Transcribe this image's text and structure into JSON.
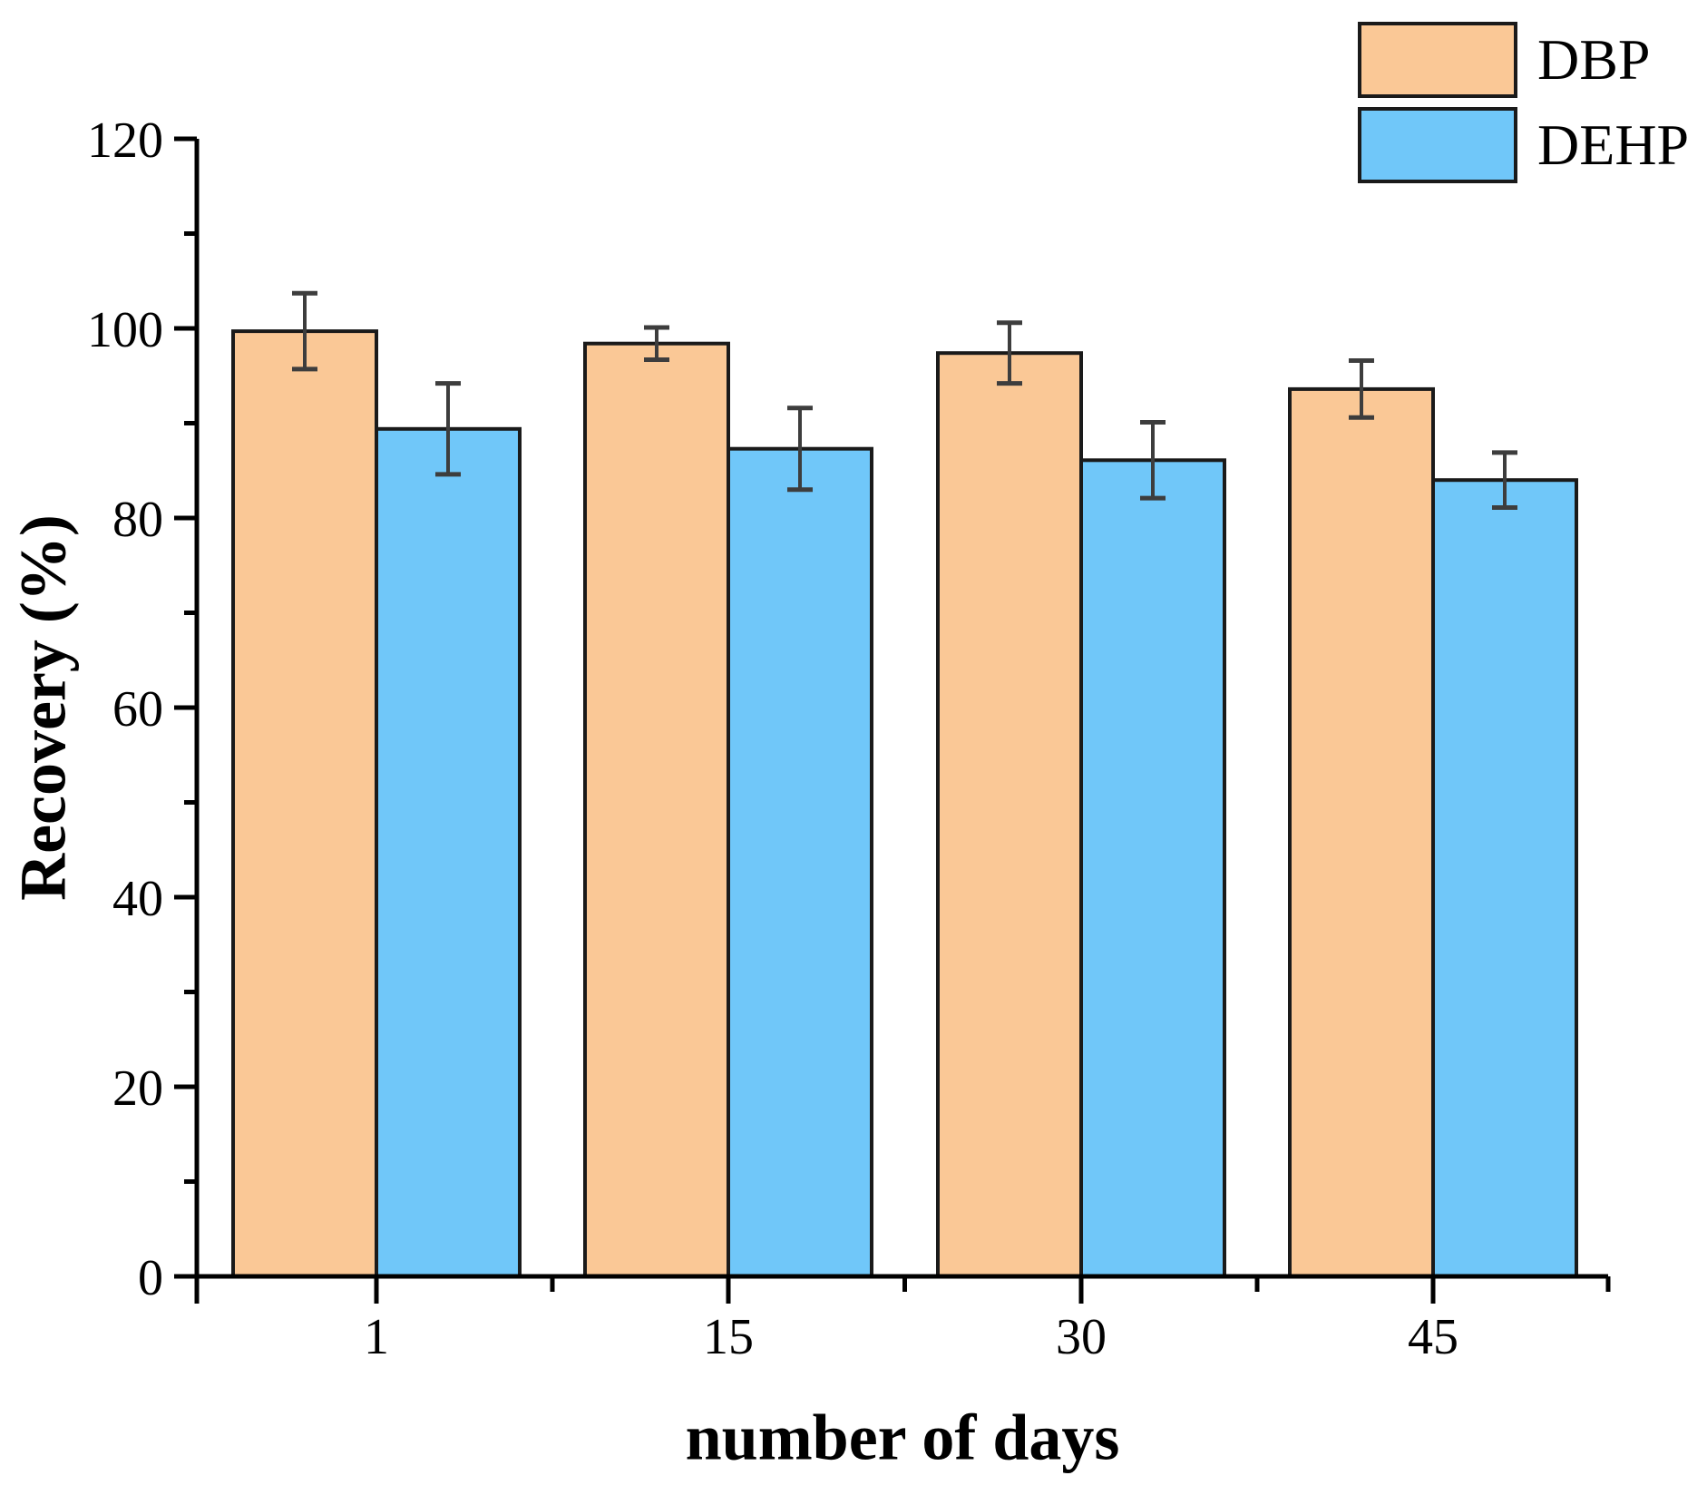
{
  "chart_data": {
    "type": "bar",
    "title": "",
    "xlabel": "number of days",
    "ylabel": "Recovery (%)",
    "categories": [
      "1",
      "15",
      "30",
      "45"
    ],
    "series": [
      {
        "name": "DBP",
        "color": "#FAC896",
        "values": [
          99.7,
          98.4,
          97.4,
          93.6
        ],
        "errors": [
          4.0,
          1.7,
          3.2,
          3.0
        ]
      },
      {
        "name": "DEHP",
        "color": "#70C7F9",
        "values": [
          89.4,
          87.3,
          86.1,
          84.0
        ],
        "errors": [
          4.8,
          4.3,
          4.0,
          2.9
        ]
      }
    ],
    "ylim": [
      0,
      120
    ],
    "y_major_ticks": [
      0,
      20,
      40,
      60,
      80,
      100,
      120
    ],
    "y_minor_step": 10,
    "grid": false,
    "legend_position": "top-right",
    "bar_edge_color": "#1a1a1a",
    "error_bar_color": "#3d3d3d",
    "axis_color": "#000000"
  }
}
